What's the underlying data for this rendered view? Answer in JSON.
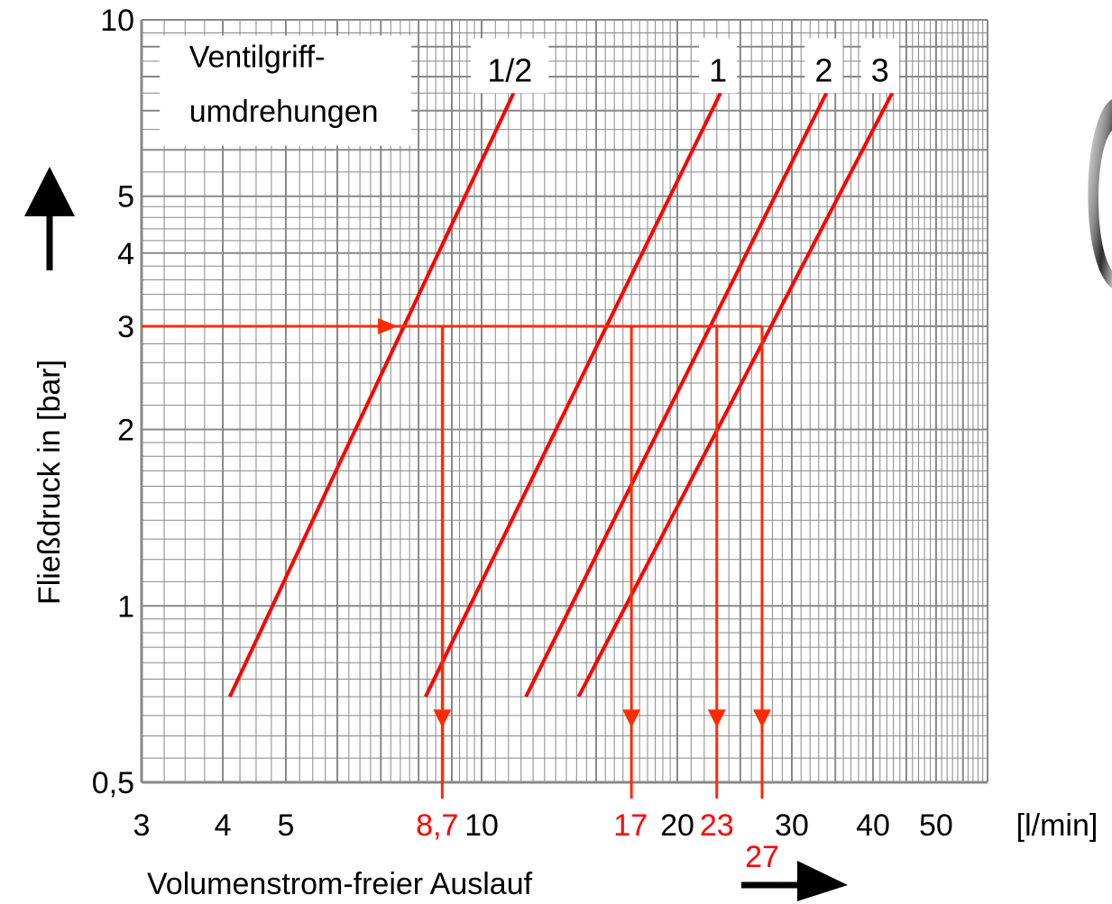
{
  "chart_data": {
    "type": "line",
    "x_scale": "log",
    "y_scale": "log",
    "xlim": [
      3,
      60
    ],
    "ylim": [
      0.5,
      10
    ],
    "grid": true,
    "x_ticks": [
      3,
      4,
      5,
      10,
      20,
      30,
      40,
      50
    ],
    "x_tick_labels": [
      "3",
      "4",
      "5",
      "10",
      "20",
      "30",
      "40",
      "50"
    ],
    "y_ticks": [
      0.5,
      1,
      2,
      3,
      4,
      5,
      10
    ],
    "y_tick_labels": [
      "0,5",
      "1",
      "2",
      "3",
      "4",
      "5",
      "10"
    ],
    "xlabel": "Volumenstrom-freier Auslauf",
    "x_unit": "[l/min]",
    "ylabel": "Fließdruck in [bar]",
    "legend_title_line1": "Ventilgriff-",
    "legend_title_line2": "umdrehungen",
    "series": [
      {
        "name": "1/2",
        "x": [
          4.1,
          11.2
        ],
        "y": [
          0.7,
          7.5
        ]
      },
      {
        "name": "1",
        "x": [
          8.2,
          23.3
        ],
        "y": [
          0.7,
          7.5
        ]
      },
      {
        "name": "2",
        "x": [
          11.7,
          33.9
        ],
        "y": [
          0.7,
          7.5
        ]
      },
      {
        "name": "3",
        "x": [
          14.1,
          42.8
        ],
        "y": [
          0.7,
          7.5
        ]
      }
    ],
    "reference_pressure": 3,
    "reference_flows": [
      8.7,
      17,
      23,
      27
    ],
    "reference_flow_labels": [
      "8,7",
      "17",
      "23",
      "27"
    ],
    "colors": {
      "curves": "#ff0000",
      "reference": "#ff2a00",
      "grid": "#888888"
    }
  }
}
